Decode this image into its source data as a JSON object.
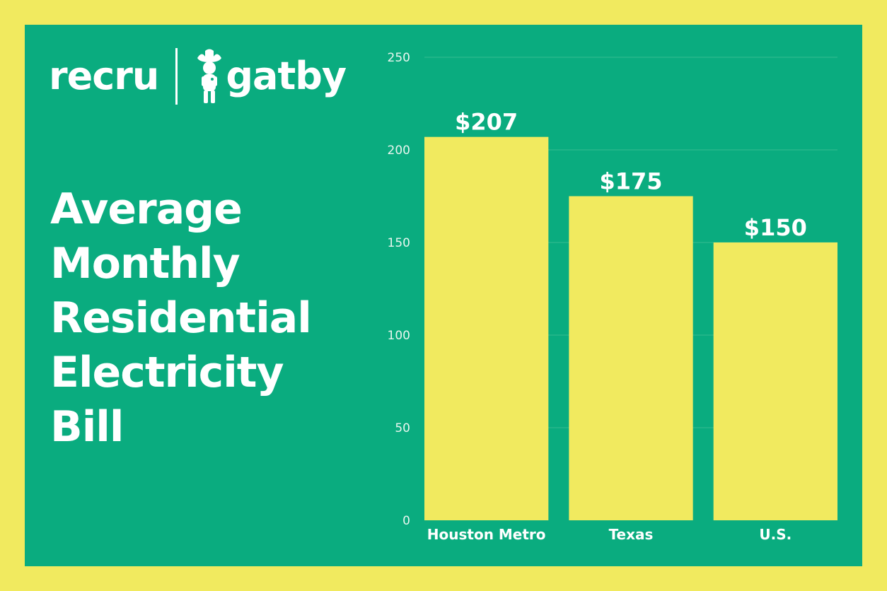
{
  "branding": {
    "brand_left": "recru",
    "brand_right": "gatby"
  },
  "title_lines": [
    "Average",
    "Monthly",
    "Residential",
    "Electricity",
    "Bill"
  ],
  "colors": {
    "background": "#F1EA5F",
    "panel": "#0AAC7F",
    "bar": "#F1EA5F",
    "text": "#FFFFFF",
    "tick_text": "#E8F6EF",
    "gridline": "#37BC92"
  },
  "chart_data": {
    "type": "bar",
    "categories": [
      "Houston Metro",
      "Texas",
      "U.S."
    ],
    "values": [
      207,
      175,
      150
    ],
    "data_labels": [
      "$207",
      "$175",
      "$150"
    ],
    "ylim": [
      0,
      250
    ],
    "yticks": [
      0,
      50,
      100,
      150,
      200,
      250
    ],
    "xlabel": "",
    "ylabel": "",
    "grid": true,
    "legend": "none"
  }
}
